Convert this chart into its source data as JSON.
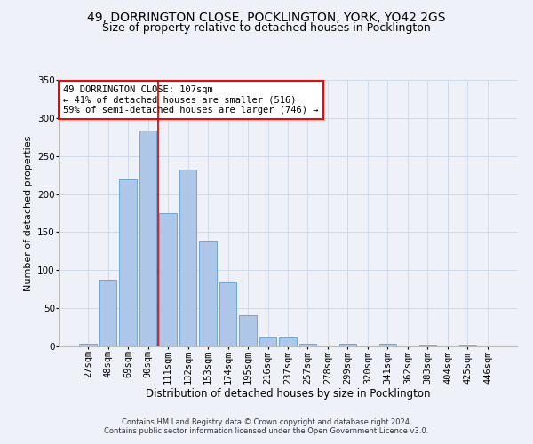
{
  "title": "49, DORRINGTON CLOSE, POCKLINGTON, YORK, YO42 2GS",
  "subtitle": "Size of property relative to detached houses in Pocklington",
  "xlabel": "Distribution of detached houses by size in Pocklington",
  "ylabel": "Number of detached properties",
  "categories": [
    "27sqm",
    "48sqm",
    "69sqm",
    "90sqm",
    "111sqm",
    "132sqm",
    "153sqm",
    "174sqm",
    "195sqm",
    "216sqm",
    "237sqm",
    "257sqm",
    "278sqm",
    "299sqm",
    "320sqm",
    "341sqm",
    "362sqm",
    "383sqm",
    "404sqm",
    "425sqm",
    "446sqm"
  ],
  "bar_heights": [
    3,
    87,
    219,
    283,
    175,
    232,
    139,
    84,
    41,
    12,
    12,
    4,
    0,
    3,
    0,
    3,
    0,
    1,
    0,
    1,
    0
  ],
  "bar_color": "#aec6e8",
  "bar_edgecolor": "#5a9fd4",
  "vline_x_index": 3.5,
  "vline_color": "#cc0000",
  "annotation_box_text": "49 DORRINGTON CLOSE: 107sqm\n← 41% of detached houses are smaller (516)\n59% of semi-detached houses are larger (746) →",
  "grid_color": "#ccd6e8",
  "background_color": "#eef2f8",
  "footer_text": "Contains HM Land Registry data © Crown copyright and database right 2024.\nContains public sector information licensed under the Open Government Licence v3.0.",
  "ylim": [
    0,
    350
  ],
  "yticks": [
    0,
    50,
    100,
    150,
    200,
    250,
    300,
    350
  ],
  "title_fontsize": 10,
  "subtitle_fontsize": 9,
  "xlabel_fontsize": 8.5,
  "ylabel_fontsize": 8,
  "tick_fontsize": 7.5,
  "annotation_fontsize": 7.5,
  "footer_fontsize": 6
}
